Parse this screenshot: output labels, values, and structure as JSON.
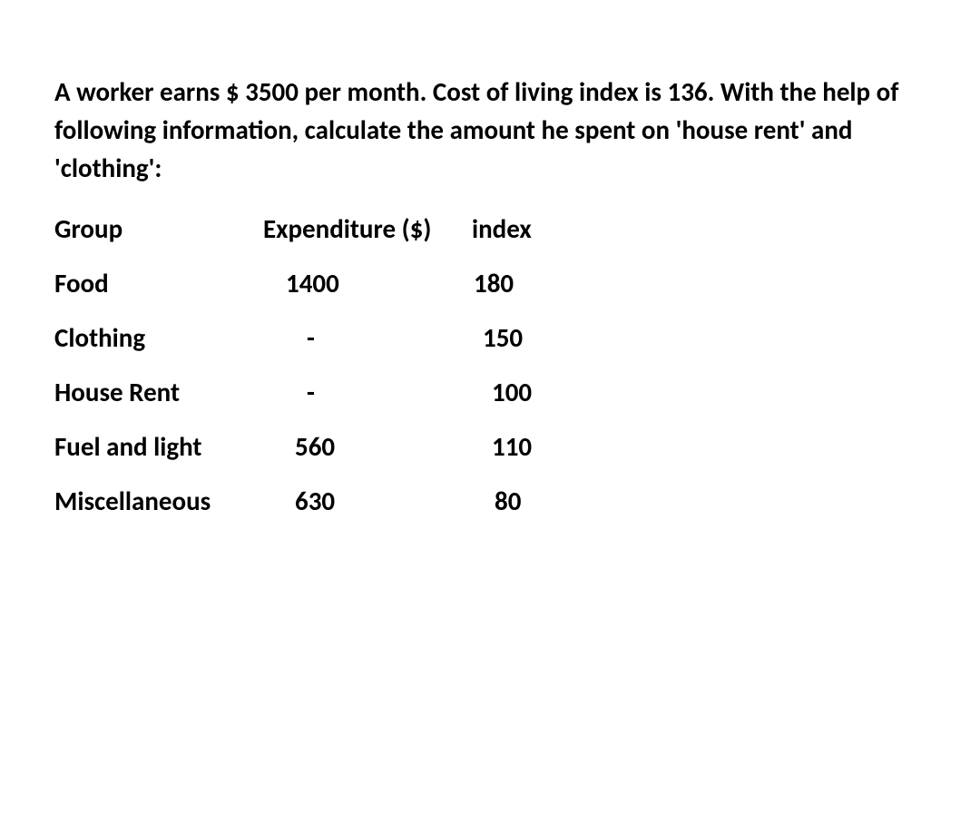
{
  "question": "A worker earns $ 3500 per month. Cost of living index is 136. With the help of following information, calculate the amount he spent on 'house rent' and 'clothing':",
  "table": {
    "headers": {
      "group": "Group",
      "expenditure": "Expenditure ($)",
      "index": "index"
    },
    "rows": [
      {
        "group": "Food",
        "expenditure": "1400",
        "index": "180"
      },
      {
        "group": "Clothing",
        "expenditure": "-",
        "index": "150"
      },
      {
        "group": "House Rent",
        "expenditure": "-",
        "index": "100"
      },
      {
        "group": "Fuel and light",
        "expenditure": "560",
        "index": "110"
      },
      {
        "group": "Miscellaneous",
        "expenditure": "630",
        "index": "80"
      }
    ]
  },
  "style": {
    "background_color": "#ffffff",
    "text_color": "#000000",
    "font_family": "Calibri, Arial, sans-serif",
    "font_size_pt": 22,
    "font_weight": "bold",
    "line_height": 1.45
  }
}
